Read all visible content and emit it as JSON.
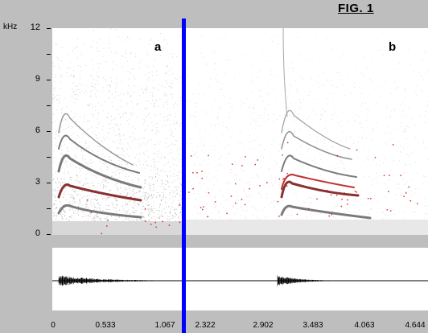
{
  "figure": {
    "title": "FIG. 1"
  },
  "y_axis": {
    "unit": "kHz",
    "ticks": [
      "12",
      "9",
      "6",
      "3",
      "0"
    ]
  },
  "x_axis": {
    "ticks": [
      "0",
      "0.533",
      "1.067",
      "2.322",
      "2.902",
      "3.483",
      "4.063",
      "4.644"
    ]
  },
  "panels": [
    {
      "label": "a"
    },
    {
      "label": "b"
    }
  ],
  "colors": {
    "divider": "#0000ff",
    "harmonic": "#808080",
    "trace": "#cc0000",
    "background": "#bebebe"
  }
}
